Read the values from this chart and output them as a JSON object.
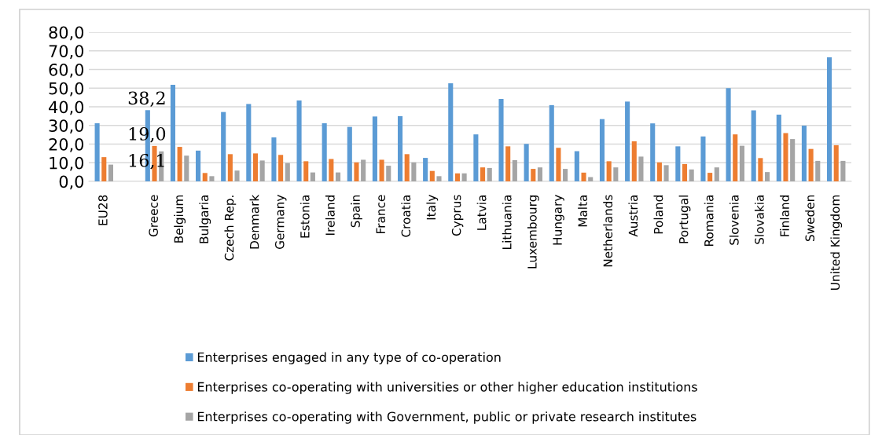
{
  "chart_data": {
    "type": "bar",
    "categories": [
      "EU28",
      null,
      "Greece",
      "Belgium",
      "Bulgaria",
      "Czech Rep.",
      "Denmark",
      "Germany",
      "Estonia",
      "Ireland",
      "Spain",
      "France",
      "Croatia",
      "Italy",
      "Cyprus",
      "Latvia",
      "Lithuania",
      "Luxembourg",
      "Hungary",
      "Malta",
      "Netherlands",
      "Austria",
      "Poland",
      "Portugal",
      "Romania",
      "Slovenia",
      "Slovakia",
      "Finland",
      "Sweden",
      "United Kingdom"
    ],
    "series": [
      {
        "name": "Enterprises engaged in any type of co-operation",
        "color": "#5b9bd5",
        "values": [
          31.2,
          null,
          38.2,
          51.8,
          16.5,
          37.2,
          41.5,
          23.6,
          43.4,
          31.2,
          29.2,
          34.8,
          35.0,
          12.6,
          52.6,
          25.2,
          44.2,
          20.1,
          40.9,
          16.2,
          33.4,
          42.8,
          31.1,
          18.8,
          24.1,
          50.0,
          38.1,
          35.8,
          29.9,
          66.5
        ]
      },
      {
        "name": "Enterprises co-operating with universities or other higher education institutions",
        "color": "#ed7d31",
        "values": [
          13.0,
          null,
          19.0,
          18.5,
          4.5,
          14.6,
          15.0,
          14.2,
          10.8,
          12.0,
          10.2,
          11.6,
          14.6,
          5.6,
          4.3,
          7.5,
          18.8,
          6.7,
          18.0,
          4.7,
          10.8,
          21.5,
          10.2,
          9.3,
          4.6,
          25.2,
          12.5,
          25.9,
          17.4,
          19.4
        ]
      },
      {
        "name": "Enterprises co-operating with Government, public or private research institutes",
        "color": "#a5a5a5",
        "values": [
          9.0,
          null,
          16.1,
          13.8,
          2.8,
          5.8,
          11.2,
          9.8,
          4.8,
          4.8,
          11.6,
          8.4,
          10.2,
          2.8,
          4.3,
          7.2,
          11.4,
          7.5,
          6.7,
          2.3,
          7.5,
          13.3,
          8.7,
          6.4,
          7.5,
          19.1,
          5.0,
          22.7,
          11.0,
          11.0
        ]
      }
    ],
    "ylim": [
      0,
      80
    ],
    "yticks": [
      {
        "value": 0,
        "label": "0,0"
      },
      {
        "value": 10,
        "label": "10,0"
      },
      {
        "value": 20,
        "label": "20,0"
      },
      {
        "value": 30,
        "label": "30,0"
      },
      {
        "value": 40,
        "label": "40,0"
      },
      {
        "value": 50,
        "label": "50,0"
      },
      {
        "value": 60,
        "label": "60,0"
      },
      {
        "value": 70,
        "label": "70,0"
      },
      {
        "value": 80,
        "label": "80,0"
      }
    ],
    "grid": "y",
    "legend": "bottom",
    "annotations": [
      {
        "text": "38,2",
        "x": "Greece",
        "y": 38.2
      },
      {
        "text": "19,0",
        "x": "Greece",
        "y": 19.0
      },
      {
        "text": "16,1",
        "x": "Greece",
        "y": 16.1
      }
    ]
  }
}
